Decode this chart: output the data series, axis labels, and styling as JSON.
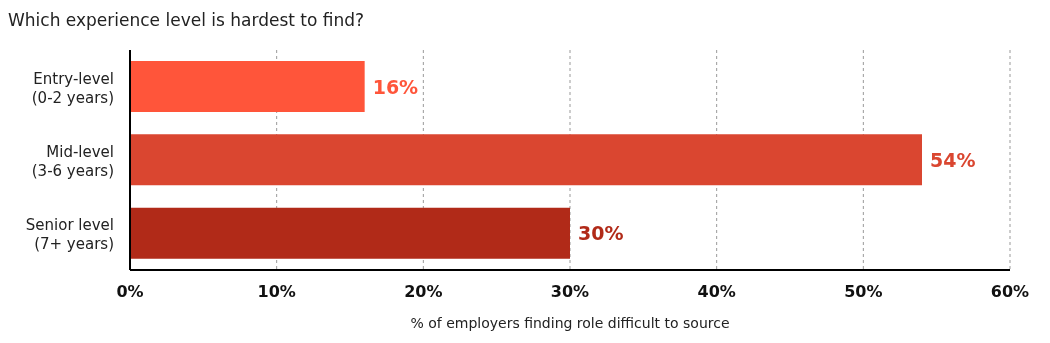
{
  "chart_data": {
    "type": "bar",
    "orientation": "horizontal",
    "title": "Which experience level is hardest to find?",
    "xlabel": "% of employers finding role difficult to source",
    "categories": [
      "Entry-level\n(0-2 years)",
      "Mid-level\n(3-6 years)",
      "Senior level\n(7+ years)"
    ],
    "values": [
      16,
      54,
      30
    ],
    "colors": [
      "#ff553a",
      "#da4630",
      "#b12a18"
    ],
    "value_labels": [
      "16%",
      "54%",
      "30%"
    ],
    "xlim": [
      0,
      60
    ],
    "xticks": [
      {
        "value": 0,
        "label": "0%"
      },
      {
        "value": 10,
        "label": "10%"
      },
      {
        "value": 20,
        "label": "20%"
      },
      {
        "value": 30,
        "label": "30%"
      },
      {
        "value": 40,
        "label": "40%"
      },
      {
        "value": 50,
        "label": "50%"
      },
      {
        "value": 60,
        "label": "60%"
      }
    ],
    "grid": "x"
  }
}
